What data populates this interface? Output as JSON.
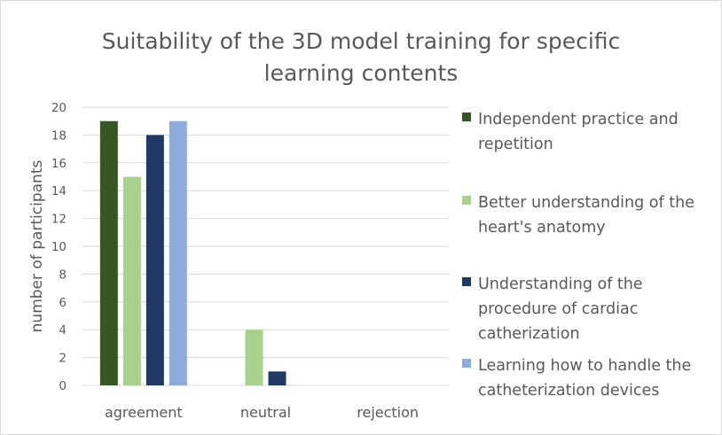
{
  "chart_data": {
    "type": "bar",
    "title_lines": [
      "Suitability of the 3D model training for specific",
      "learning contents"
    ],
    "xlabel": "",
    "ylabel": "number of participants",
    "categories": [
      "agreement",
      "neutral",
      "rejection"
    ],
    "ylim": [
      0,
      20
    ],
    "yticks": [
      0,
      2,
      4,
      6,
      8,
      10,
      12,
      14,
      16,
      18,
      20
    ],
    "grid": true,
    "legend_position": "right",
    "series": [
      {
        "name": "Independent practice and repetition",
        "color": "#375623",
        "values": [
          19,
          0,
          0
        ]
      },
      {
        "name": "Better understanding of the heart's anatomy",
        "color": "#a9d18e",
        "values": [
          15,
          4,
          0
        ]
      },
      {
        "name": "Understanding of the procedure of cardiac catherization",
        "color": "#203864",
        "values": [
          18,
          1,
          0
        ]
      },
      {
        "name": "Learning how to handle the catheterization devices",
        "color": "#8faadc",
        "values": [
          19,
          0,
          0
        ]
      }
    ]
  }
}
